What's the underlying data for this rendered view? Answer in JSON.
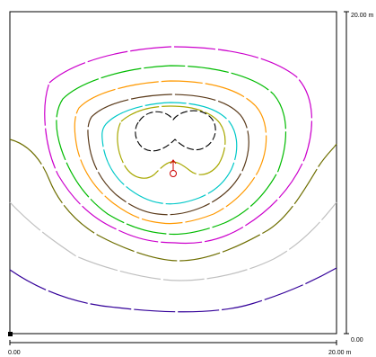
{
  "scale": {
    "x_start": "0.00",
    "x_end": "20.00 m",
    "y_bottom": "0.00",
    "y_top": "20.00 m"
  },
  "luminaire": {
    "icon": "luminaire-symbol-icon",
    "color": "#cc0000"
  },
  "isolines": [
    {
      "name": "isoline-level-1",
      "color": "#000000",
      "dashed": true
    },
    {
      "name": "isoline-level-2",
      "color": "#a8a800"
    },
    {
      "name": "isoline-level-3",
      "color": "#00c8c8"
    },
    {
      "name": "isoline-level-4",
      "color": "#5a3a1a"
    },
    {
      "name": "isoline-level-5",
      "color": "#ff9900"
    },
    {
      "name": "isoline-level-6",
      "color": "#00bb00"
    },
    {
      "name": "isoline-level-7",
      "color": "#cc00cc"
    },
    {
      "name": "isoline-level-8",
      "color": "#6e6e00"
    },
    {
      "name": "isoline-level-9",
      "color": "#c0c0c0"
    },
    {
      "name": "isoline-level-10",
      "color": "#330099"
    }
  ]
}
